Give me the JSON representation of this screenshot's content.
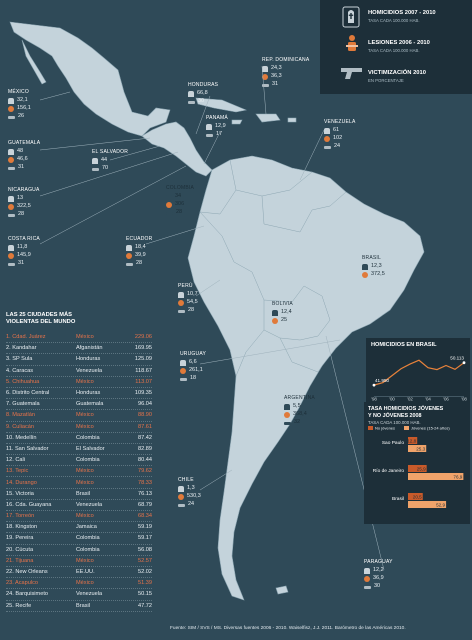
{
  "legend": {
    "items": [
      {
        "title": "HOMICIDIOS 2007 - 2010",
        "subtitle": "TASA CADA 100.000 HAB.",
        "icon": "tombstone-icon"
      },
      {
        "title": "LESIONES 2006 - 2010",
        "subtitle": "TASA CADA 100.000 HAB.",
        "icon": "injured-person-icon"
      },
      {
        "title": "VICTIMIZACIÓN 2010",
        "subtitle": "EN PORCENTAJE",
        "icon": "pistol-icon"
      }
    ]
  },
  "countries": [
    {
      "id": "mexico",
      "name": "MÉXICO",
      "homicides": "32,1",
      "injuries": "156,1",
      "victim": "26"
    },
    {
      "id": "honduras",
      "name": "HONDURAS",
      "homicides": "66,8",
      "injuries": "",
      "victim": "30"
    },
    {
      "id": "rep-dominicana",
      "name": "REP. DOMINICANA",
      "homicides": "24,3",
      "injuries": "36,3",
      "victim": "31"
    },
    {
      "id": "guatemala",
      "name": "GUATEMALA",
      "homicides": "48",
      "injuries": "46,6",
      "victim": "31"
    },
    {
      "id": "el-salvador",
      "name": "EL SALVADOR",
      "homicides": "44",
      "injuries": "",
      "victim": "70"
    },
    {
      "id": "panama",
      "name": "PANAMÁ",
      "homicides": "12,9",
      "injuries": "",
      "victim": "17"
    },
    {
      "id": "venezuela",
      "name": "VENEZUELA",
      "homicides": "61",
      "injuries": "102",
      "victim": "24"
    },
    {
      "id": "nicaragua",
      "name": "NICARAGUA",
      "homicides": "13",
      "injuries": "322,5",
      "victim": "28"
    },
    {
      "id": "colombia",
      "name": "COLOMBIA",
      "homicides": "34",
      "injuries": "306",
      "victim": "28"
    },
    {
      "id": "costa-rica",
      "name": "COSTA RICA",
      "homicides": "11,8",
      "injuries": "145,9",
      "victim": "31"
    },
    {
      "id": "ecuador",
      "name": "ECUADOR",
      "homicides": "18,4",
      "injuries": "39,9",
      "victim": "28"
    },
    {
      "id": "brasil",
      "name": "BRASIL",
      "homicides": "12,3",
      "injuries": "372,5",
      "victim": ""
    },
    {
      "id": "peru",
      "name": "PERÚ",
      "homicides": "10,7",
      "injuries": "54,5",
      "victim": "28"
    },
    {
      "id": "bolivia",
      "name": "BOLIVIA",
      "homicides": "12,4",
      "injuries": "25",
      "victim": ""
    },
    {
      "id": "uruguay",
      "name": "URUGUAY",
      "homicides": "6,6",
      "injuries": "261,1",
      "victim": "18"
    },
    {
      "id": "argentina",
      "name": "ARGENTINA",
      "homicides": "5,5",
      "injuries": "368,4",
      "victim": "32"
    },
    {
      "id": "chile",
      "name": "CHILE",
      "homicides": "1,3",
      "injuries": "530,3",
      "victim": "24"
    },
    {
      "id": "paraguay",
      "name": "PARAGUAY",
      "homicides": "12,2",
      "injuries": "36,9",
      "victim": "30"
    }
  ],
  "ranking": {
    "title_line1": "LAS 25 CIUDADES MÁS",
    "title_line2": "VIOLENTAS DEL MUNDO",
    "rows": [
      {
        "rank": "1.",
        "city": "Cdad. Juárez",
        "country": "México",
        "value": "229.06"
      },
      {
        "rank": "2.",
        "city": "Kandahar",
        "country": "Afganistán",
        "value": "169.95"
      },
      {
        "rank": "3.",
        "city": "SP Sula",
        "country": "Honduras",
        "value": "125.09"
      },
      {
        "rank": "4.",
        "city": "Caracas",
        "country": "Venezuela",
        "value": "118.67"
      },
      {
        "rank": "5.",
        "city": "Chihuahua",
        "country": "México",
        "value": "113.07"
      },
      {
        "rank": "6.",
        "city": "Distrito Central",
        "country": "Honduras",
        "value": "109.35"
      },
      {
        "rank": "7.",
        "city": "Guatemala",
        "country": "Guatemala",
        "value": "96.04"
      },
      {
        "rank": "8.",
        "city": "Mazatlán",
        "country": "México",
        "value": "88.90"
      },
      {
        "rank": "9.",
        "city": "Culiacán",
        "country": "México",
        "value": "87.61"
      },
      {
        "rank": "10.",
        "city": "Medellín",
        "country": "Colombia",
        "value": "87.42"
      },
      {
        "rank": "11.",
        "city": "San Salvador",
        "country": "El Salvador",
        "value": "82.89"
      },
      {
        "rank": "12.",
        "city": "Cali",
        "country": "Colombia",
        "value": "80.44"
      },
      {
        "rank": "13.",
        "city": "Tepic",
        "country": "México",
        "value": "79.62"
      },
      {
        "rank": "14.",
        "city": "Durango",
        "country": "México",
        "value": "78.33"
      },
      {
        "rank": "15.",
        "city": "Victoria",
        "country": "Brasil",
        "value": "76.13"
      },
      {
        "rank": "16.",
        "city": "Cda. Guayana",
        "country": "Venezuela",
        "value": "68.79"
      },
      {
        "rank": "17.",
        "city": "Torreón",
        "country": "México",
        "value": "68.34"
      },
      {
        "rank": "18.",
        "city": "Kingston",
        "country": "Jamaica",
        "value": "59.19"
      },
      {
        "rank": "19.",
        "city": "Pereira",
        "country": "Colombia",
        "value": "59.17"
      },
      {
        "rank": "20.",
        "city": "Cúcuta",
        "country": "Colombia",
        "value": "56.08"
      },
      {
        "rank": "21.",
        "city": "Tijuana",
        "country": "México",
        "value": "52.57"
      },
      {
        "rank": "22.",
        "city": "New Orleans",
        "country": "EE.UU.",
        "value": "52.02"
      },
      {
        "rank": "23.",
        "city": "Acapulco",
        "country": "México",
        "value": "51.39"
      },
      {
        "rank": "24.",
        "city": "Barquisimeto",
        "country": "Venezuela",
        "value": "50.15"
      },
      {
        "rank": "25.",
        "city": "Recife",
        "country": "Brasil",
        "value": "47.72"
      }
    ]
  },
  "brasil_chart": {
    "title": "HOMICIDIOS EN BRASIL",
    "type": "line",
    "x_ticks": [
      "'98",
      "'00",
      "'02",
      "'04",
      "'06",
      "'08"
    ],
    "x": [
      1998,
      1999,
      2000,
      2001,
      2002,
      2003,
      2004,
      2005,
      2006,
      2007,
      2008
    ],
    "values": [
      41950,
      42900,
      45400,
      47900,
      49600,
      51000,
      48300,
      47600,
      49100,
      47700,
      50113
    ],
    "label_first": "41.950",
    "label_last": "50.113",
    "ylim": [
      38000,
      54000
    ],
    "color": "#e8823a"
  },
  "youth_chart": {
    "title_line1": "TASA HOMICIDIOS JÓVENES",
    "title_line2": "Y NO JÓVENES 2008",
    "subtitle": "TASA CADA 100.000 HAB.",
    "legend": [
      "No jóvenes",
      "Jóvenes (15-24 años)"
    ],
    "colors": [
      "#c85a2a",
      "#f0a36a"
    ],
    "categories": [
      "Sao Paulo",
      "Río de Janeiro",
      "Brasil"
    ],
    "no_jovenes": [
      "12,8",
      "25,9",
      "20,5"
    ],
    "jovenes": [
      "25,3",
      "76,9",
      "52,9"
    ],
    "no_jovenes_values": [
      12.8,
      25.9,
      20.5
    ],
    "jovenes_values": [
      25.3,
      76.9,
      52.9
    ]
  },
  "source": "Fuente: SIM / SVS / MS. Diversas fuentes 2006 - 2010. Waiselfisz, J.J. 2011. Barómetro de las Américas 2010."
}
